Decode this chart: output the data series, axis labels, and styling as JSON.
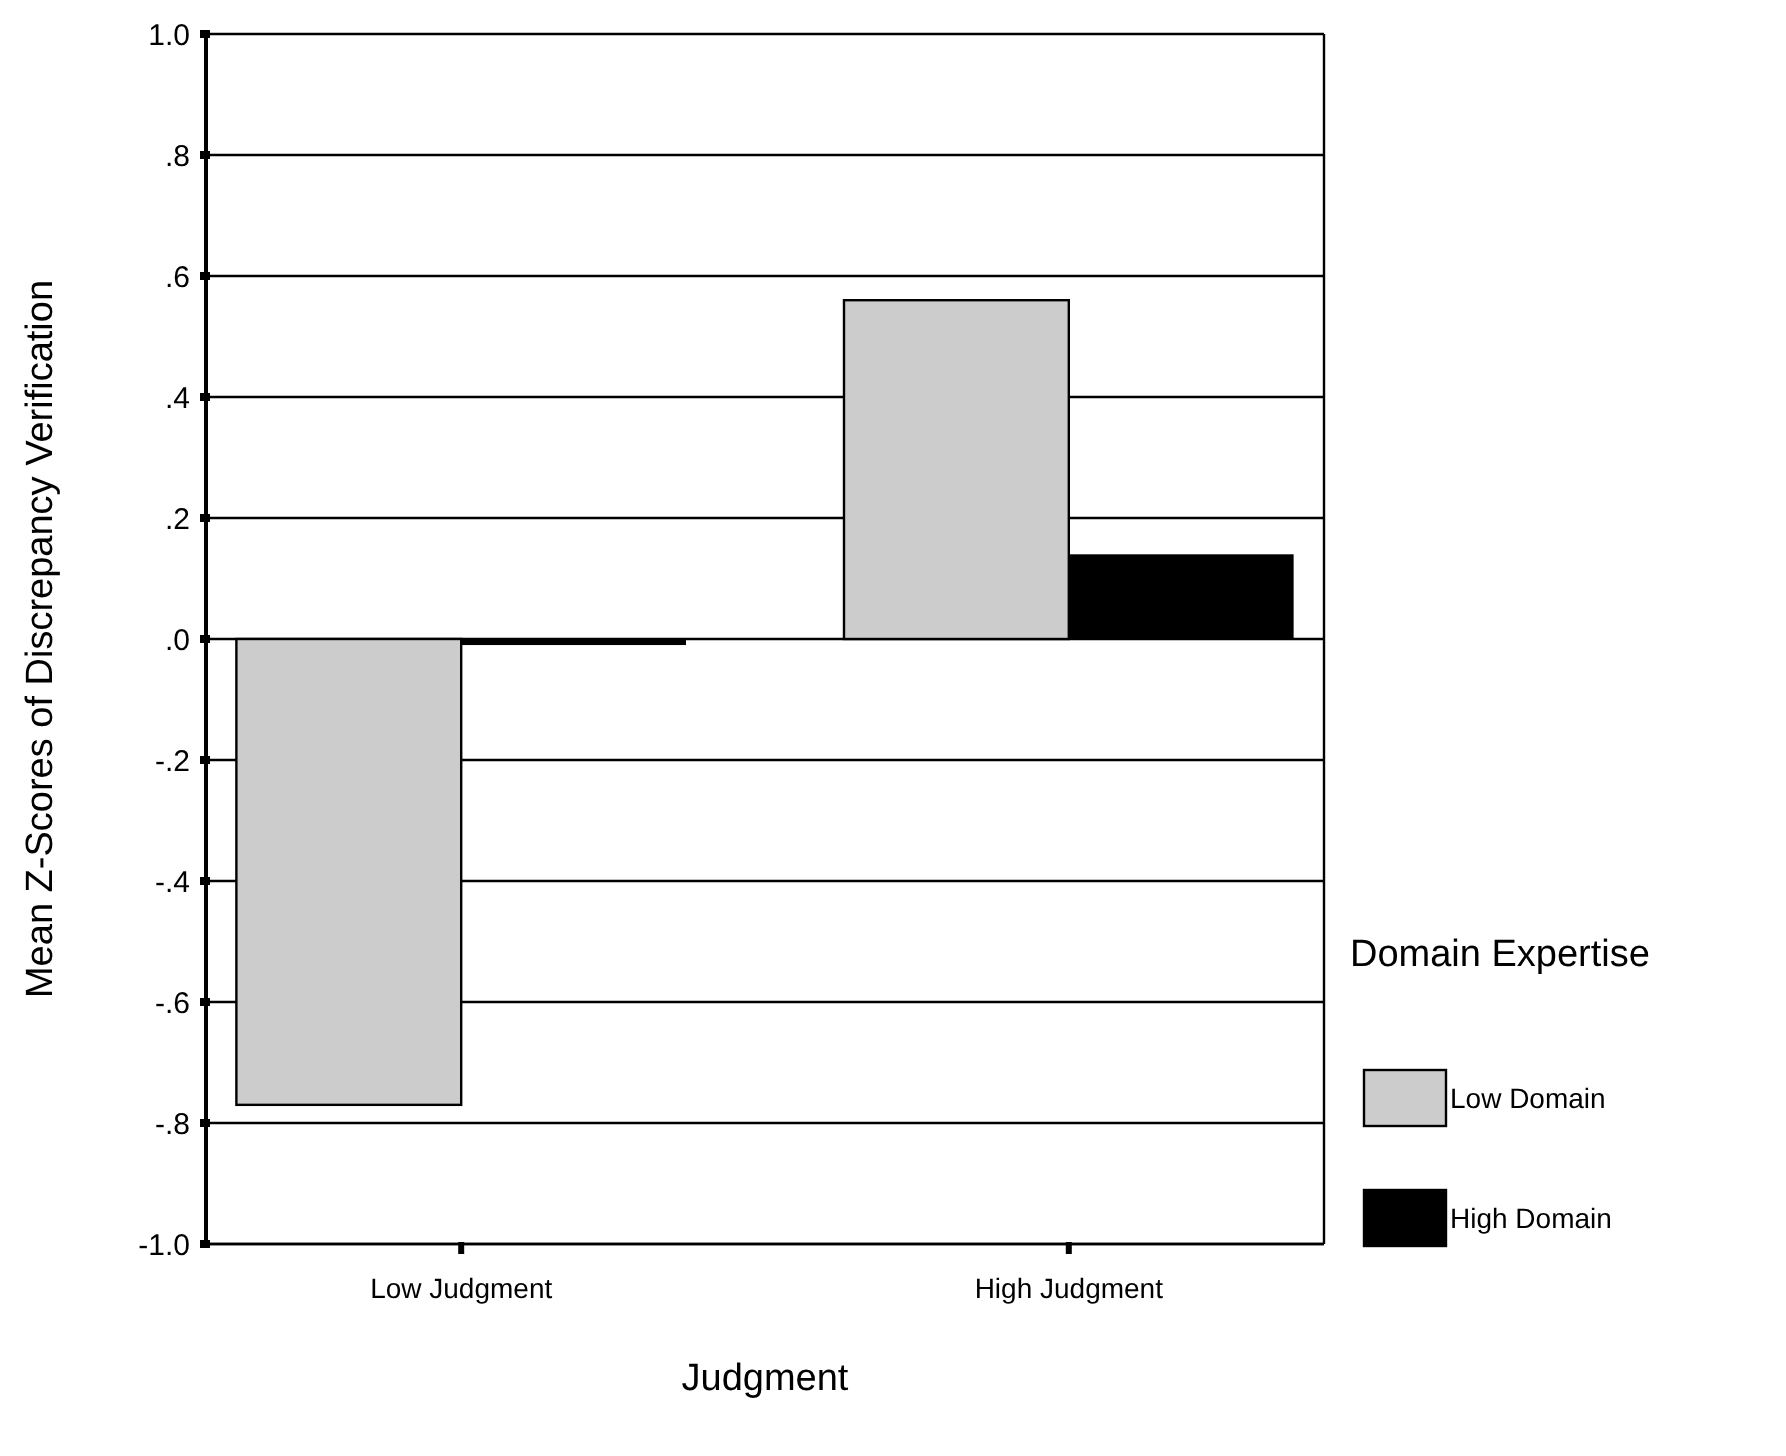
{
  "chart_data": {
    "type": "bar",
    "xlabel": "Judgment",
    "ylabel": "Mean Z-Scores of Discrepancy Verification",
    "legend_title": "Domain Expertise",
    "categories": [
      "Low  Judgment",
      "High Judgment"
    ],
    "series": [
      {
        "name": "Low  Domain",
        "color": "#cccccc",
        "values": [
          -0.77,
          0.56
        ]
      },
      {
        "name": "High Domain",
        "color": "#000000",
        "values": [
          -0.01,
          0.14
        ]
      }
    ],
    "ylim": [
      -1.0,
      1.0
    ],
    "yticks": [
      {
        "value": -1,
        "label": "-1.0"
      },
      {
        "value": -0.8,
        "label": "-.8"
      },
      {
        "value": -0.6,
        "label": "-.6"
      },
      {
        "value": -0.4,
        "label": "-.4"
      },
      {
        "value": -0.2,
        "label": "-.2"
      },
      {
        "value": 0,
        "label": ".0"
      },
      {
        "value": 0.2,
        "label": ".2"
      },
      {
        "value": 0.4,
        "label": ".4"
      },
      {
        "value": 0.6,
        "label": ".6"
      },
      {
        "value": 0.8,
        "label": ".8"
      },
      {
        "value": 1,
        "label": "1.0"
      }
    ],
    "grid": "y",
    "legend": "right"
  }
}
